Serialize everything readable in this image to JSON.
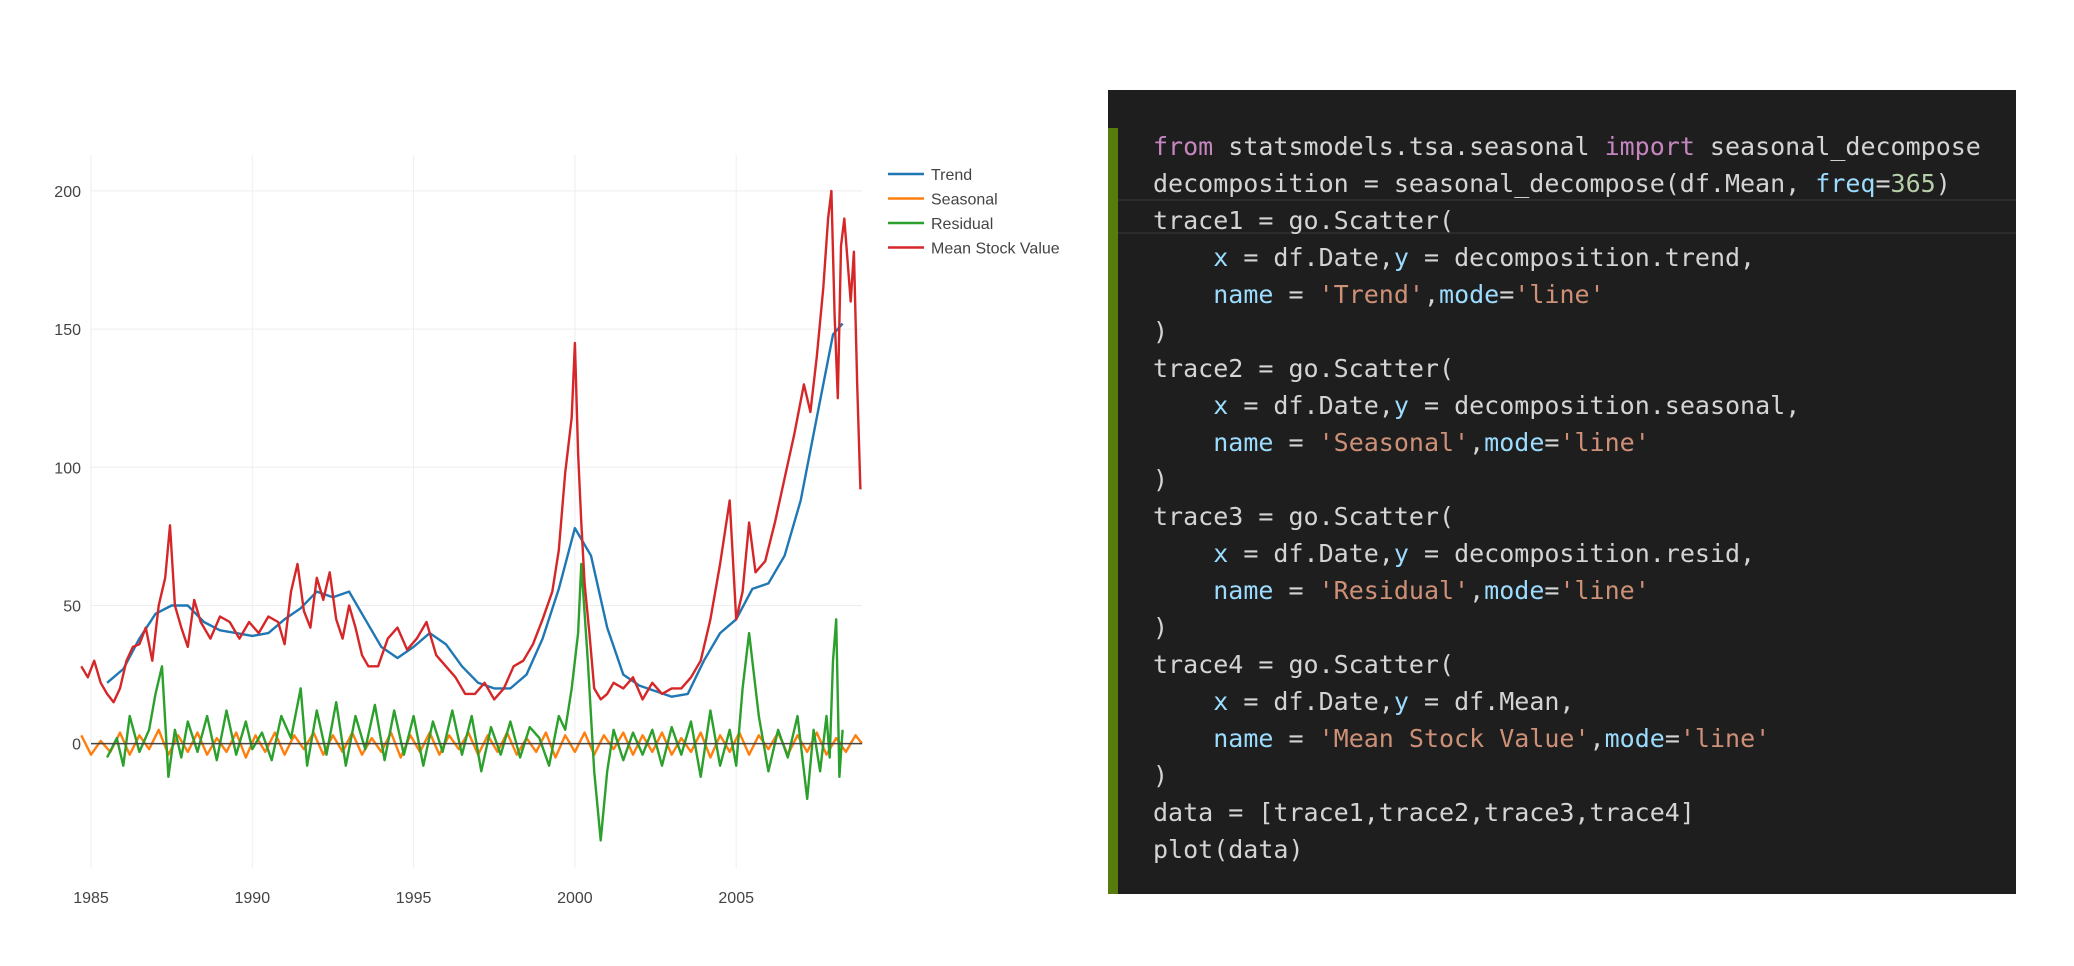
{
  "colors": {
    "trend": "#1f77b4",
    "seasonal": "#ff7f0e",
    "residual": "#2ca02c",
    "mean": "#d62728",
    "code_bg": "#1e1e1e",
    "code_bar": "#587c0c"
  },
  "chart_data": {
    "type": "line",
    "title": "",
    "xlabel": "",
    "ylabel": "",
    "x_ticks": [
      1985,
      1990,
      1995,
      2000,
      2005
    ],
    "y_ticks": [
      0,
      50,
      100,
      150,
      200
    ],
    "xlim": [
      1985.0,
      2008.9
    ],
    "ylim": [
      -45,
      213
    ],
    "grid": true,
    "zero_line": true,
    "legend_position": "top-right, outside plot area",
    "series": [
      {
        "name": "Trend",
        "color_key": "trend",
        "x": [
          1985.5,
          1986.0,
          1986.5,
          1987.0,
          1987.5,
          1988.0,
          1988.5,
          1989.0,
          1989.5,
          1990.0,
          1990.5,
          1991.0,
          1991.5,
          1992.0,
          1992.5,
          1993.0,
          1993.5,
          1994.0,
          1994.5,
          1995.0,
          1995.5,
          1996.0,
          1996.5,
          1997.0,
          1997.5,
          1998.0,
          1998.5,
          1999.0,
          1999.5,
          2000.0,
          2000.5,
          2001.0,
          2001.5,
          2002.0,
          2002.5,
          2003.0,
          2003.5,
          2004.0,
          2004.5,
          2005.0,
          2005.5,
          2006.0,
          2006.5,
          2007.0,
          2007.5,
          2008.0,
          2008.3
        ],
        "values": [
          22,
          27,
          38,
          47,
          50,
          50,
          44,
          41,
          40,
          39,
          40,
          45,
          49,
          55,
          53,
          55,
          45,
          35,
          31,
          35,
          40,
          36,
          28,
          22,
          20,
          20,
          25,
          38,
          56,
          78,
          68,
          42,
          25,
          21,
          19,
          17,
          18,
          30,
          40,
          45,
          56,
          58,
          68,
          88,
          118,
          148,
          152
        ]
      },
      {
        "name": "Seasonal",
        "color_key": "seasonal",
        "x": [
          1984.7,
          1985.0,
          1985.3,
          1985.6,
          1985.9,
          1986.2,
          1986.5,
          1986.8,
          1987.1,
          1987.4,
          1987.7,
          1988.0,
          1988.3,
          1988.6,
          1988.9,
          1989.2,
          1989.5,
          1989.8,
          1990.1,
          1990.4,
          1990.7,
          1991.0,
          1991.3,
          1991.6,
          1991.9,
          1992.2,
          1992.5,
          1992.8,
          1993.1,
          1993.4,
          1993.7,
          1994.0,
          1994.3,
          1994.6,
          1994.9,
          1995.2,
          1995.5,
          1995.8,
          1996.1,
          1996.4,
          1996.7,
          1997.0,
          1997.3,
          1997.6,
          1997.9,
          1998.2,
          1998.5,
          1998.8,
          1999.1,
          1999.4,
          1999.7,
          2000.0,
          2000.3,
          2000.6,
          2000.9,
          2001.2,
          2001.5,
          2001.8,
          2002.1,
          2002.4,
          2002.7,
          2003.0,
          2003.3,
          2003.6,
          2003.9,
          2004.2,
          2004.5,
          2004.8,
          2005.1,
          2005.4,
          2005.7,
          2006.0,
          2006.3,
          2006.6,
          2006.9,
          2007.2,
          2007.5,
          2007.8,
          2008.1,
          2008.4,
          2008.7,
          2008.9
        ],
        "values": [
          3,
          -4,
          1,
          -3,
          4,
          -4,
          3,
          -2,
          5,
          -4,
          3,
          -3,
          4,
          -4,
          2,
          -3,
          4,
          -5,
          3,
          -3,
          4,
          -4,
          3,
          -2,
          4,
          -4,
          3,
          -3,
          4,
          -4,
          2,
          -3,
          4,
          -5,
          3,
          -3,
          4,
          -4,
          3,
          -2,
          4,
          -4,
          3,
          -3,
          4,
          -4,
          2,
          -3,
          4,
          -5,
          3,
          -3,
          4,
          -4,
          3,
          -2,
          4,
          -4,
          3,
          -3,
          4,
          -4,
          2,
          -3,
          4,
          -5,
          3,
          -3,
          4,
          -4,
          3,
          -2,
          4,
          -4,
          3,
          -3,
          4,
          -4,
          2,
          -3,
          3,
          0
        ]
      },
      {
        "name": "Residual",
        "color_key": "residual",
        "x": [
          1985.5,
          1985.8,
          1986.0,
          1986.2,
          1986.5,
          1986.8,
          1987.0,
          1987.2,
          1987.4,
          1987.6,
          1987.8,
          1988.0,
          1988.3,
          1988.6,
          1988.9,
          1989.2,
          1989.5,
          1989.8,
          1990.0,
          1990.3,
          1990.6,
          1990.9,
          1991.2,
          1991.5,
          1991.7,
          1992.0,
          1992.3,
          1992.6,
          1992.9,
          1993.2,
          1993.5,
          1993.8,
          1994.1,
          1994.4,
          1994.7,
          1995.0,
          1995.3,
          1995.6,
          1995.9,
          1996.2,
          1996.5,
          1996.8,
          1997.1,
          1997.4,
          1997.7,
          1998.0,
          1998.3,
          1998.6,
          1998.9,
          1999.2,
          1999.5,
          1999.7,
          1999.9,
          2000.1,
          2000.2,
          2000.4,
          2000.6,
          2000.8,
          2001.0,
          2001.2,
          2001.5,
          2001.8,
          2002.1,
          2002.4,
          2002.7,
          2003.0,
          2003.3,
          2003.6,
          2003.9,
          2004.2,
          2004.5,
          2004.8,
          2005.0,
          2005.2,
          2005.4,
          2005.7,
          2006.0,
          2006.3,
          2006.6,
          2006.9,
          2007.2,
          2007.4,
          2007.6,
          2007.8,
          2007.9,
          2008.0,
          2008.1,
          2008.2,
          2008.3
        ],
        "values": [
          -5,
          2,
          -8,
          10,
          -3,
          5,
          18,
          28,
          -12,
          5,
          -5,
          8,
          -3,
          10,
          -6,
          12,
          -4,
          8,
          -2,
          4,
          -6,
          10,
          2,
          20,
          -8,
          12,
          -4,
          15,
          -8,
          10,
          -2,
          14,
          -6,
          12,
          -4,
          10,
          -8,
          8,
          -3,
          12,
          -4,
          10,
          -10,
          6,
          -4,
          8,
          -5,
          6,
          2,
          -8,
          10,
          5,
          20,
          40,
          65,
          30,
          -10,
          -35,
          -10,
          5,
          -6,
          4,
          -4,
          5,
          -8,
          6,
          -4,
          8,
          -12,
          12,
          -8,
          5,
          -8,
          20,
          40,
          10,
          -10,
          5,
          -5,
          10,
          -20,
          5,
          -10,
          10,
          -5,
          30,
          45,
          -12,
          5
        ]
      },
      {
        "name": "Mean Stock Value",
        "color_key": "mean",
        "x": [
          1984.7,
          1984.9,
          1985.1,
          1985.3,
          1985.5,
          1985.7,
          1985.9,
          1986.1,
          1986.3,
          1986.5,
          1986.7,
          1986.9,
          1987.1,
          1987.3,
          1987.45,
          1987.6,
          1987.8,
          1988.0,
          1988.2,
          1988.4,
          1988.7,
          1989.0,
          1989.3,
          1989.6,
          1989.9,
          1990.2,
          1990.5,
          1990.8,
          1991.0,
          1991.2,
          1991.4,
          1991.6,
          1991.8,
          1992.0,
          1992.2,
          1992.4,
          1992.6,
          1992.8,
          1993.0,
          1993.2,
          1993.4,
          1993.6,
          1993.9,
          1994.2,
          1994.5,
          1994.8,
          1995.1,
          1995.4,
          1995.7,
          1996.0,
          1996.3,
          1996.6,
          1996.9,
          1997.2,
          1997.5,
          1997.8,
          1998.1,
          1998.4,
          1998.7,
          1999.0,
          1999.3,
          1999.5,
          1999.7,
          1999.9,
          2000.0,
          2000.1,
          2000.2,
          2000.3,
          2000.45,
          2000.6,
          2000.8,
          2001.0,
          2001.2,
          2001.5,
          2001.8,
          2002.1,
          2002.4,
          2002.7,
          2003.0,
          2003.3,
          2003.6,
          2003.9,
          2004.2,
          2004.5,
          2004.8,
          2005.0,
          2005.2,
          2005.4,
          2005.6,
          2005.9,
          2006.2,
          2006.5,
          2006.8,
          2007.1,
          2007.3,
          2007.5,
          2007.7,
          2007.85,
          2007.95,
          2008.05,
          2008.15,
          2008.25,
          2008.35,
          2008.45,
          2008.55,
          2008.65,
          2008.75,
          2008.85
        ],
        "values": [
          28,
          24,
          30,
          22,
          18,
          15,
          20,
          30,
          35,
          36,
          42,
          30,
          50,
          60,
          79,
          50,
          42,
          35,
          52,
          44,
          38,
          46,
          44,
          38,
          44,
          40,
          46,
          44,
          36,
          55,
          65,
          48,
          42,
          60,
          52,
          62,
          45,
          38,
          50,
          42,
          32,
          28,
          28,
          38,
          42,
          34,
          38,
          44,
          32,
          28,
          24,
          18,
          18,
          22,
          16,
          20,
          28,
          30,
          36,
          45,
          55,
          70,
          98,
          118,
          145,
          105,
          80,
          58,
          40,
          20,
          16,
          18,
          22,
          20,
          24,
          16,
          22,
          18,
          20,
          20,
          24,
          30,
          45,
          65,
          88,
          45,
          55,
          80,
          62,
          66,
          80,
          96,
          112,
          130,
          120,
          140,
          165,
          190,
          200,
          155,
          125,
          180,
          190,
          175,
          160,
          178,
          130,
          92
        ]
      }
    ]
  },
  "code": {
    "lines": [
      [
        {
          "t": "kw",
          "v": "from"
        },
        {
          "t": "plain",
          "v": " statsmodels.tsa.seasonal "
        },
        {
          "t": "kw",
          "v": "import"
        },
        {
          "t": "plain",
          "v": " seasonal_decompose"
        }
      ],
      [
        {
          "t": "plain",
          "v": "decomposition = seasonal_decompose(df.Mean, "
        },
        {
          "t": "param",
          "v": "freq"
        },
        {
          "t": "plain",
          "v": "="
        },
        {
          "t": "num",
          "v": "365"
        },
        {
          "t": "plain",
          "v": ")"
        }
      ],
      [
        {
          "t": "plain",
          "v": "trace1 = go.Scatter("
        }
      ],
      [
        {
          "t": "plain",
          "v": "    "
        },
        {
          "t": "param",
          "v": "x"
        },
        {
          "t": "plain",
          "v": " = df.Date,"
        },
        {
          "t": "param",
          "v": "y"
        },
        {
          "t": "plain",
          "v": " = decomposition.trend,"
        }
      ],
      [
        {
          "t": "plain",
          "v": "    "
        },
        {
          "t": "param",
          "v": "name"
        },
        {
          "t": "plain",
          "v": " = "
        },
        {
          "t": "str",
          "v": "'Trend'"
        },
        {
          "t": "plain",
          "v": ","
        },
        {
          "t": "param",
          "v": "mode"
        },
        {
          "t": "plain",
          "v": "="
        },
        {
          "t": "str",
          "v": "'line'"
        }
      ],
      [
        {
          "t": "plain",
          "v": ")"
        }
      ],
      [
        {
          "t": "plain",
          "v": "trace2 = go.Scatter("
        }
      ],
      [
        {
          "t": "plain",
          "v": "    "
        },
        {
          "t": "param",
          "v": "x"
        },
        {
          "t": "plain",
          "v": " = df.Date,"
        },
        {
          "t": "param",
          "v": "y"
        },
        {
          "t": "plain",
          "v": " = decomposition.seasonal,"
        }
      ],
      [
        {
          "t": "plain",
          "v": "    "
        },
        {
          "t": "param",
          "v": "name"
        },
        {
          "t": "plain",
          "v": " = "
        },
        {
          "t": "str",
          "v": "'Seasonal'"
        },
        {
          "t": "plain",
          "v": ","
        },
        {
          "t": "param",
          "v": "mode"
        },
        {
          "t": "plain",
          "v": "="
        },
        {
          "t": "str",
          "v": "'line'"
        }
      ],
      [
        {
          "t": "plain",
          "v": ")"
        }
      ],
      [
        {
          "t": "plain",
          "v": "trace3 = go.Scatter("
        }
      ],
      [
        {
          "t": "plain",
          "v": "    "
        },
        {
          "t": "param",
          "v": "x"
        },
        {
          "t": "plain",
          "v": " = df.Date,"
        },
        {
          "t": "param",
          "v": "y"
        },
        {
          "t": "plain",
          "v": " = decomposition.resid,"
        }
      ],
      [
        {
          "t": "plain",
          "v": "    "
        },
        {
          "t": "param",
          "v": "name"
        },
        {
          "t": "plain",
          "v": " = "
        },
        {
          "t": "str",
          "v": "'Residual'"
        },
        {
          "t": "plain",
          "v": ","
        },
        {
          "t": "param",
          "v": "mode"
        },
        {
          "t": "plain",
          "v": "="
        },
        {
          "t": "str",
          "v": "'line'"
        }
      ],
      [
        {
          "t": "plain",
          "v": ")"
        }
      ],
      [
        {
          "t": "plain",
          "v": "trace4 = go.Scatter("
        }
      ],
      [
        {
          "t": "plain",
          "v": "    "
        },
        {
          "t": "param",
          "v": "x"
        },
        {
          "t": "plain",
          "v": " = df.Date,"
        },
        {
          "t": "param",
          "v": "y"
        },
        {
          "t": "plain",
          "v": " = df.Mean,"
        }
      ],
      [
        {
          "t": "plain",
          "v": "    "
        },
        {
          "t": "param",
          "v": "name"
        },
        {
          "t": "plain",
          "v": " = "
        },
        {
          "t": "str",
          "v": "'Mean Stock Value'"
        },
        {
          "t": "plain",
          "v": ","
        },
        {
          "t": "param",
          "v": "mode"
        },
        {
          "t": "plain",
          "v": "="
        },
        {
          "t": "str",
          "v": "'line'"
        }
      ],
      [
        {
          "t": "plain",
          "v": ")"
        }
      ],
      [
        {
          "t": "plain",
          "v": "data = [trace1,trace2,trace3,trace4]"
        }
      ],
      [
        {
          "t": "plain",
          "v": "plot(data)"
        }
      ]
    ]
  }
}
